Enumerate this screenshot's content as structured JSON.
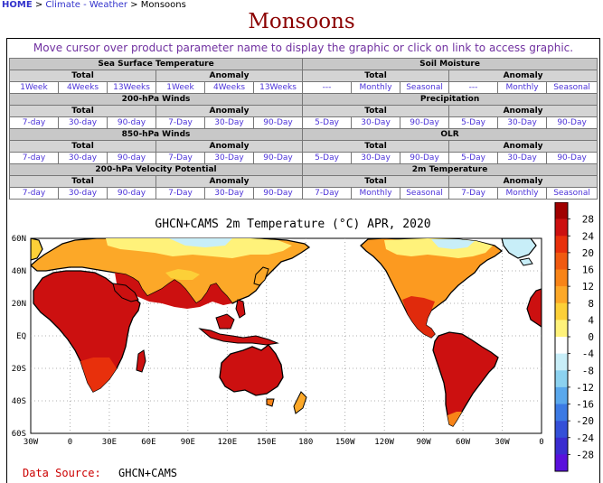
{
  "breadcrumb": {
    "home": "HOME",
    "sep": ">",
    "level1": "Climate - Weather",
    "current": "Monsoons"
  },
  "page_title": "Monsoons",
  "instructions": "Move cursor over product parameter name to display the graphic or click on link to access graphic.",
  "sections": [
    {
      "left": {
        "name": "Sea Surface Temperature",
        "total": {
          "label": "Total",
          "links": [
            "1Week",
            "4Weeks",
            "13Weeks"
          ]
        },
        "anomaly": {
          "label": "Anomaly",
          "links": [
            "1Week",
            "4Weeks",
            "13Weeks"
          ]
        }
      },
      "right": {
        "name": "Soil Moisture",
        "total": {
          "label": "Total",
          "links": [
            "---",
            "Monthly",
            "Seasonal"
          ]
        },
        "anomaly": {
          "label": "Anomaly",
          "links": [
            "---",
            "Monthly",
            "Seasonal"
          ]
        }
      }
    },
    {
      "left": {
        "name": "200-hPa Winds",
        "total": {
          "label": "Total",
          "links": [
            "7-day",
            "30-day",
            "90-day"
          ]
        },
        "anomaly": {
          "label": "Anomaly",
          "links": [
            "7-Day",
            "30-Day",
            "90-Day"
          ]
        }
      },
      "right": {
        "name": "Precipitation",
        "total": {
          "label": "Total",
          "links": [
            "5-Day",
            "30-Day",
            "90-Day"
          ]
        },
        "anomaly": {
          "label": "Anomaly",
          "links": [
            "5-Day",
            "30-Day",
            "90-Day"
          ]
        }
      }
    },
    {
      "left": {
        "name": "850-hPa Winds",
        "total": {
          "label": "Total",
          "links": [
            "7-day",
            "30-day",
            "90-day"
          ]
        },
        "anomaly": {
          "label": "Anomaly",
          "links": [
            "7-Day",
            "30-Day",
            "90-Day"
          ]
        }
      },
      "right": {
        "name": "OLR",
        "total": {
          "label": "Total",
          "links": [
            "5-Day",
            "30-Day",
            "90-Day"
          ]
        },
        "anomaly": {
          "label": "Anomaly",
          "links": [
            "5-Day",
            "30-Day",
            "90-Day"
          ]
        }
      }
    },
    {
      "left": {
        "name": "200-hPa Velocity Potential",
        "total": {
          "label": "Total",
          "links": [
            "7-day",
            "30-day",
            "90-day"
          ]
        },
        "anomaly": {
          "label": "Anomaly",
          "links": [
            "7-Day",
            "30-Day",
            "90-Day"
          ]
        }
      },
      "right": {
        "name": "2m Temperature",
        "total": {
          "label": "Total",
          "links": [
            "7-Day",
            "Monthly",
            "Seasonal"
          ]
        },
        "anomaly": {
          "label": "Anomaly",
          "links": [
            "7-Day",
            "Monthly",
            "Seasonal"
          ]
        }
      }
    }
  ],
  "map": {
    "title": "GHCN+CAMS 2m Temperature (°C) APR, 2020",
    "lat_labels": [
      "60N",
      "40N",
      "20N",
      "EQ",
      "20S",
      "40S",
      "60S"
    ],
    "lon_labels": [
      "30W",
      "0",
      "30E",
      "60E",
      "90E",
      "120E",
      "150E",
      "180",
      "150W",
      "120W",
      "90W",
      "60W",
      "30W",
      "0"
    ],
    "source_label": "Data Source:",
    "source_value": "GHCN+CAMS",
    "colorbar_labels": [
      "28",
      "24",
      "20",
      "16",
      "12",
      "8",
      "4",
      "0",
      "-4",
      "-8",
      "-12",
      "-16",
      "-20",
      "-24",
      "-28"
    ],
    "colorbar_colors": [
      "#a00000",
      "#cc1010",
      "#e8300c",
      "#f05a10",
      "#f88418",
      "#fca828",
      "#fcd038",
      "#fff27a",
      "#ffffff",
      "#c8eef8",
      "#8cd2f0",
      "#5aa8ec",
      "#3c7ae4",
      "#3450d8",
      "#3a2cd0",
      "#5a10dc"
    ]
  }
}
